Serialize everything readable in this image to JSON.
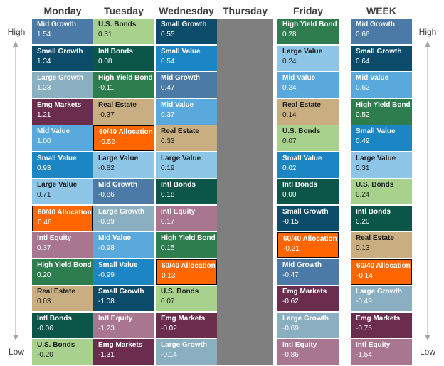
{
  "chart_data": {
    "type": "table",
    "days": [
      "Monday",
      "Tuesday",
      "Wednesday",
      "Thursday",
      "Friday",
      "WEEK"
    ],
    "axis": {
      "high": "High",
      "low": "Low"
    },
    "columns": [
      {
        "day": "Monday",
        "cells": [
          {
            "name": "Mid Growth",
            "value": "1.54",
            "color": "#4a7aa5"
          },
          {
            "name": "Small Growth",
            "value": "1.34",
            "color": "#0d4b6b"
          },
          {
            "name": "Large Growth",
            "value": "1.23",
            "color": "#8aafc1"
          },
          {
            "name": "Emg Markets",
            "value": "1.21",
            "color": "#6b2d4e"
          },
          {
            "name": "Mid Value",
            "value": "1.00",
            "color": "#5aa9dc"
          },
          {
            "name": "Small Value",
            "value": "0.93",
            "color": "#1c86c4"
          },
          {
            "name": "Large Value",
            "value": "0.71",
            "color": "#8ec6e8"
          },
          {
            "name": "60/40 Allocation",
            "value": "0.46",
            "color": "#ff6600"
          },
          {
            "name": "Intl Equity",
            "value": "0.37",
            "color": "#a9768f"
          },
          {
            "name": "High Yield Bond",
            "value": "0.20",
            "color": "#2e7d4f"
          },
          {
            "name": "Real Estate",
            "value": "0.03",
            "color": "#c8ae80"
          },
          {
            "name": "Intl Bonds",
            "value": "-0.06",
            "color": "#0c5549"
          },
          {
            "name": "U.S. Bonds",
            "value": "-0.20",
            "color": "#a9d18e"
          }
        ]
      },
      {
        "day": "Tuesday",
        "cells": [
          {
            "name": "U.S. Bonds",
            "value": "0.31",
            "color": "#a9d18e"
          },
          {
            "name": "Intl Bonds",
            "value": "0.08",
            "color": "#0c5549"
          },
          {
            "name": "High Yield Bond",
            "value": "-0.11",
            "color": "#2e7d4f"
          },
          {
            "name": "Real Estate",
            "value": "-0.37",
            "color": "#c8ae80"
          },
          {
            "name": "60/40 Allocation",
            "value": "-0.52",
            "color": "#ff6600"
          },
          {
            "name": "Large Value",
            "value": "-0.82",
            "color": "#8ec6e8"
          },
          {
            "name": "Mid Growth",
            "value": "-0.86",
            "color": "#4a7aa5"
          },
          {
            "name": "Large Growth",
            "value": "-0.89",
            "color": "#8aafc1"
          },
          {
            "name": "Mid Value",
            "value": "-0.98",
            "color": "#5aa9dc"
          },
          {
            "name": "Small Value",
            "value": "-0.99",
            "color": "#1c86c4"
          },
          {
            "name": "Small Growth",
            "value": "-1.08",
            "color": "#0d4b6b"
          },
          {
            "name": "Intl Equity",
            "value": "-1.23",
            "color": "#a9768f"
          },
          {
            "name": "Emg Markets",
            "value": "-1.31",
            "color": "#6b2d4e"
          }
        ]
      },
      {
        "day": "Wednesday",
        "cells": [
          {
            "name": "Small Growth",
            "value": "0.55",
            "color": "#0d4b6b"
          },
          {
            "name": "Small Value",
            "value": "0.54",
            "color": "#1c86c4"
          },
          {
            "name": "Mid Growth",
            "value": "0.47",
            "color": "#4a7aa5"
          },
          {
            "name": "Mid Value",
            "value": "0.37",
            "color": "#5aa9dc"
          },
          {
            "name": "Real Estate",
            "value": "0.33",
            "color": "#c8ae80"
          },
          {
            "name": "Large Value",
            "value": "0.19",
            "color": "#8ec6e8"
          },
          {
            "name": "Intl Bonds",
            "value": "0.18",
            "color": "#0c5549"
          },
          {
            "name": "Intl Equity",
            "value": "0.17",
            "color": "#a9768f"
          },
          {
            "name": "High Yield Bond",
            "value": "0.15",
            "color": "#2e7d4f"
          },
          {
            "name": "60/40 Allocation",
            "value": "0.13",
            "color": "#ff6600"
          },
          {
            "name": "U.S. Bonds",
            "value": "0.07",
            "color": "#a9d18e"
          },
          {
            "name": "Emg Markets",
            "value": "-0.02",
            "color": "#6b2d4e"
          },
          {
            "name": "Large Growth",
            "value": "-0.14",
            "color": "#8aafc1"
          }
        ]
      },
      {
        "day": "Thursday",
        "cells": []
      },
      {
        "day": "Friday",
        "cells": [
          {
            "name": "High Yield Bond",
            "value": "0.28",
            "color": "#2e7d4f"
          },
          {
            "name": "Large Value",
            "value": "0.24",
            "color": "#8ec6e8"
          },
          {
            "name": "Mid Value",
            "value": "0.24",
            "color": "#5aa9dc"
          },
          {
            "name": "Real Estate",
            "value": "0.14",
            "color": "#c8ae80"
          },
          {
            "name": "U.S. Bonds",
            "value": "0.07",
            "color": "#a9d18e"
          },
          {
            "name": "Small Value",
            "value": "0.02",
            "color": "#1c86c4"
          },
          {
            "name": "Intl Bonds",
            "value": "0.00",
            "color": "#0c5549"
          },
          {
            "name": "Small Growth",
            "value": "-0.15",
            "color": "#0d4b6b"
          },
          {
            "name": "60/40 Allocation",
            "value": "-0.21",
            "color": "#ff6600"
          },
          {
            "name": "Mid Growth",
            "value": "-0.47",
            "color": "#4a7aa5"
          },
          {
            "name": "Emg Markets",
            "value": "-0.62",
            "color": "#6b2d4e"
          },
          {
            "name": "Large Growth",
            "value": "-0.69",
            "color": "#8aafc1"
          },
          {
            "name": "Intl Equity",
            "value": "-0.86",
            "color": "#a9768f"
          }
        ]
      },
      {
        "day": "WEEK",
        "cells": [
          {
            "name": "Mid Growth",
            "value": "0.66",
            "color": "#4a7aa5"
          },
          {
            "name": "Small Growth",
            "value": "0.64",
            "color": "#0d4b6b"
          },
          {
            "name": "Mid Value",
            "value": "0.62",
            "color": "#5aa9dc"
          },
          {
            "name": "High Yield Bond",
            "value": "0.52",
            "color": "#2e7d4f"
          },
          {
            "name": "Small Value",
            "value": "0.49",
            "color": "#1c86c4"
          },
          {
            "name": "Large Value",
            "value": "0.31",
            "color": "#8ec6e8"
          },
          {
            "name": "U.S. Bonds",
            "value": "0.24",
            "color": "#a9d18e"
          },
          {
            "name": "Intl Bonds",
            "value": "0.20",
            "color": "#0c5549"
          },
          {
            "name": "Real Estate",
            "value": "0.13",
            "color": "#c8ae80"
          },
          {
            "name": "60/40 Allocation",
            "value": "-0.14",
            "color": "#ff6600"
          },
          {
            "name": "Large Growth",
            "value": "-0.49",
            "color": "#8aafc1"
          },
          {
            "name": "Emg Markets",
            "value": "-0.75",
            "color": "#6b2d4e"
          },
          {
            "name": "Intl Equity",
            "value": "-1.54",
            "color": "#a9768f"
          }
        ]
      }
    ]
  }
}
